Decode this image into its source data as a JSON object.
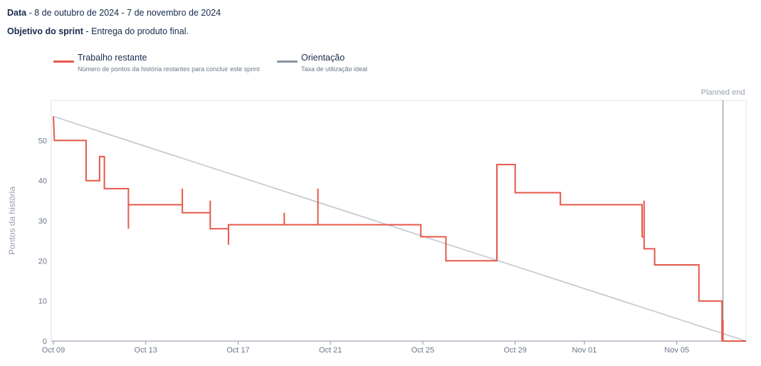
{
  "header": {
    "date_label": "Data",
    "date_value": "8 de outubro de 2024 - 7 de novembro de 2024",
    "goal_label": "Objetivo do sprint",
    "goal_value": "Entrega do produto final."
  },
  "legend": [
    {
      "title": "Trabalho restante",
      "description": "Número de pontos da história restantes para concluir este sprint",
      "color": "#e5584b"
    },
    {
      "title": "Orientação",
      "description": "Taxa de utilização ideal",
      "color": "#8993a4"
    }
  ],
  "chart_data": {
    "type": "line",
    "ylabel": "Pontos da história",
    "ylim": [
      0,
      60
    ],
    "yticks": [
      0,
      10,
      20,
      30,
      40,
      50
    ],
    "xlim": [
      "2024-10-09",
      "2024-11-08"
    ],
    "xticks": [
      "Oct 09",
      "Oct 13",
      "Oct 17",
      "Oct 21",
      "Oct 25",
      "Oct 29",
      "Nov 01",
      "Nov 05"
    ],
    "xtick_dates": [
      "2024-10-09",
      "2024-10-13",
      "2024-10-17",
      "2024-10-21",
      "2024-10-25",
      "2024-10-29",
      "2024-11-01",
      "2024-11-05"
    ],
    "planned_end": {
      "label": "Planned end",
      "date": "2024-11-07 00:00"
    },
    "series": [
      {
        "name": "Trabalho restante",
        "color": "#e5584b",
        "step": true,
        "points": [
          [
            "2024-10-09 00:00",
            56
          ],
          [
            "2024-10-09 01:00",
            50
          ],
          [
            "2024-10-10 10:00",
            50
          ],
          [
            "2024-10-10 10:00",
            40
          ],
          [
            "2024-10-11 00:00",
            40
          ],
          [
            "2024-10-11 00:00",
            46
          ],
          [
            "2024-10-11 05:00",
            46
          ],
          [
            "2024-10-11 05:00",
            38
          ],
          [
            "2024-10-12 06:00",
            38
          ],
          [
            "2024-10-12 06:00",
            28
          ],
          [
            "2024-10-12 06:00",
            34
          ],
          [
            "2024-10-14 14:00",
            34
          ],
          [
            "2024-10-14 14:00",
            38
          ],
          [
            "2024-10-14 14:00",
            32
          ],
          [
            "2024-10-15 19:00",
            32
          ],
          [
            "2024-10-15 19:00",
            35
          ],
          [
            "2024-10-15 19:00",
            28
          ],
          [
            "2024-10-16 14:00",
            28
          ],
          [
            "2024-10-16 14:00",
            24
          ],
          [
            "2024-10-16 14:00",
            29
          ],
          [
            "2024-10-19 00:00",
            29
          ],
          [
            "2024-10-19 00:00",
            32
          ],
          [
            "2024-10-19 00:00",
            29
          ],
          [
            "2024-10-20 11:00",
            29
          ],
          [
            "2024-10-20 11:00",
            38
          ],
          [
            "2024-10-20 11:00",
            29
          ],
          [
            "2024-10-24 22:00",
            29
          ],
          [
            "2024-10-24 22:00",
            26
          ],
          [
            "2024-10-26 00:00",
            26
          ],
          [
            "2024-10-26 00:00",
            20
          ],
          [
            "2024-10-28 05:00",
            20
          ],
          [
            "2024-10-28 05:00",
            44
          ],
          [
            "2024-10-29 00:00",
            44
          ],
          [
            "2024-10-29 00:00",
            37
          ],
          [
            "2024-10-30 23:00",
            37
          ],
          [
            "2024-10-30 23:00",
            34
          ],
          [
            "2024-11-03 12:00",
            34
          ],
          [
            "2024-11-03 12:00",
            26
          ],
          [
            "2024-11-03 14:00",
            26
          ],
          [
            "2024-11-03 14:00",
            35
          ],
          [
            "2024-11-03 14:00",
            23
          ],
          [
            "2024-11-04 01:00",
            23
          ],
          [
            "2024-11-04 01:00",
            19
          ],
          [
            "2024-11-05 23:00",
            19
          ],
          [
            "2024-11-05 23:00",
            10
          ],
          [
            "2024-11-06 23:00",
            10
          ],
          [
            "2024-11-06 23:00",
            0
          ],
          [
            "2024-11-06 23:00",
            5
          ],
          [
            "2024-11-07 00:00",
            5
          ],
          [
            "2024-11-07 00:00",
            0
          ],
          [
            "2024-11-08 00:00",
            0
          ]
        ]
      },
      {
        "name": "Orientação",
        "color": "#c1c7d0",
        "points": [
          [
            "2024-10-09 00:00",
            56
          ],
          [
            "2024-11-08 00:00",
            0
          ]
        ]
      }
    ]
  }
}
